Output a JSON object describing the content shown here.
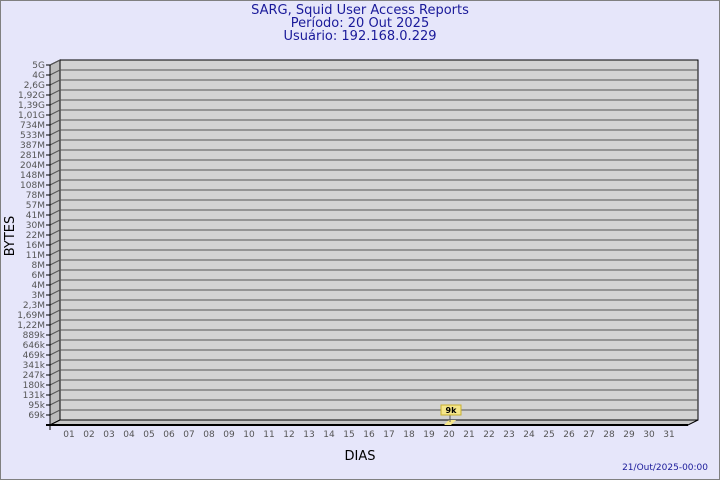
{
  "header": {
    "title": "SARG, Squid User Access Reports",
    "period": "Período: 20 Out 2025",
    "user": "Usuário: 192.168.0.229"
  },
  "footer": {
    "timestamp": "21/Out/2025-00:00"
  },
  "chart_data": {
    "type": "bar",
    "title": "SARG, Squid User Access Reports",
    "xlabel": "DIAS",
    "ylabel": "BYTES",
    "y_scale": "log",
    "grid": true,
    "y_tick_labels": [
      "5G",
      "4G",
      "2,6G",
      "1,92G",
      "1,39G",
      "1,01G",
      "734M",
      "533M",
      "387M",
      "281M",
      "204M",
      "148M",
      "108M",
      "78M",
      "57M",
      "41M",
      "30M",
      "22M",
      "16M",
      "11M",
      "8M",
      "6M",
      "4M",
      "3M",
      "2,3M",
      "1,69M",
      "1,22M",
      "889k",
      "646k",
      "469k",
      "341k",
      "247k",
      "180k",
      "131k",
      "95k",
      "69k"
    ],
    "categories": [
      "01",
      "02",
      "03",
      "04",
      "05",
      "06",
      "07",
      "08",
      "09",
      "10",
      "11",
      "12",
      "13",
      "14",
      "15",
      "16",
      "17",
      "18",
      "19",
      "20",
      "21",
      "22",
      "23",
      "24",
      "25",
      "26",
      "27",
      "28",
      "29",
      "30",
      "31"
    ],
    "series": [
      {
        "values": [
          null,
          null,
          null,
          null,
          null,
          null,
          null,
          null,
          null,
          null,
          null,
          null,
          null,
          null,
          null,
          null,
          null,
          null,
          null,
          9000,
          null,
          null,
          null,
          null,
          null,
          null,
          null,
          null,
          null,
          null,
          null
        ],
        "labels": {
          "20": "9k"
        }
      }
    ],
    "colors": {
      "background": "#e6e6fa",
      "plot": "#d3d3d3",
      "bar": "#f5e68a",
      "text": "#1a1a9a"
    }
  }
}
